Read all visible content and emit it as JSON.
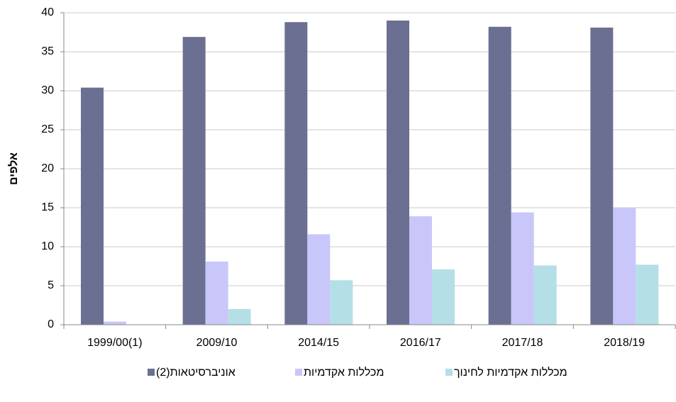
{
  "chart_data": {
    "type": "bar",
    "y_label": "אלפים",
    "categories": [
      "1999/00(1)",
      "2009/10",
      "2014/15",
      "2016/17",
      "2017/18",
      "2018/19"
    ],
    "series": [
      {
        "name": "אוניברסיטאות(2)",
        "color": "#6b6f91",
        "values": [
          30.4,
          36.9,
          38.8,
          39.0,
          38.2,
          38.1
        ]
      },
      {
        "name": "מכללות אקדמיות",
        "color": "#c9c7f9",
        "values": [
          0.4,
          8.1,
          11.6,
          13.9,
          14.4,
          15.0
        ]
      },
      {
        "name": "מכללות אקדמיות לחינוך",
        "color": "#b4dfe6",
        "values": [
          null,
          2.0,
          5.7,
          7.1,
          7.6,
          7.7
        ]
      }
    ],
    "ylim": [
      0,
      40
    ],
    "yticks": [
      0,
      5,
      10,
      15,
      20,
      25,
      30,
      35,
      40
    ],
    "grid": true
  }
}
